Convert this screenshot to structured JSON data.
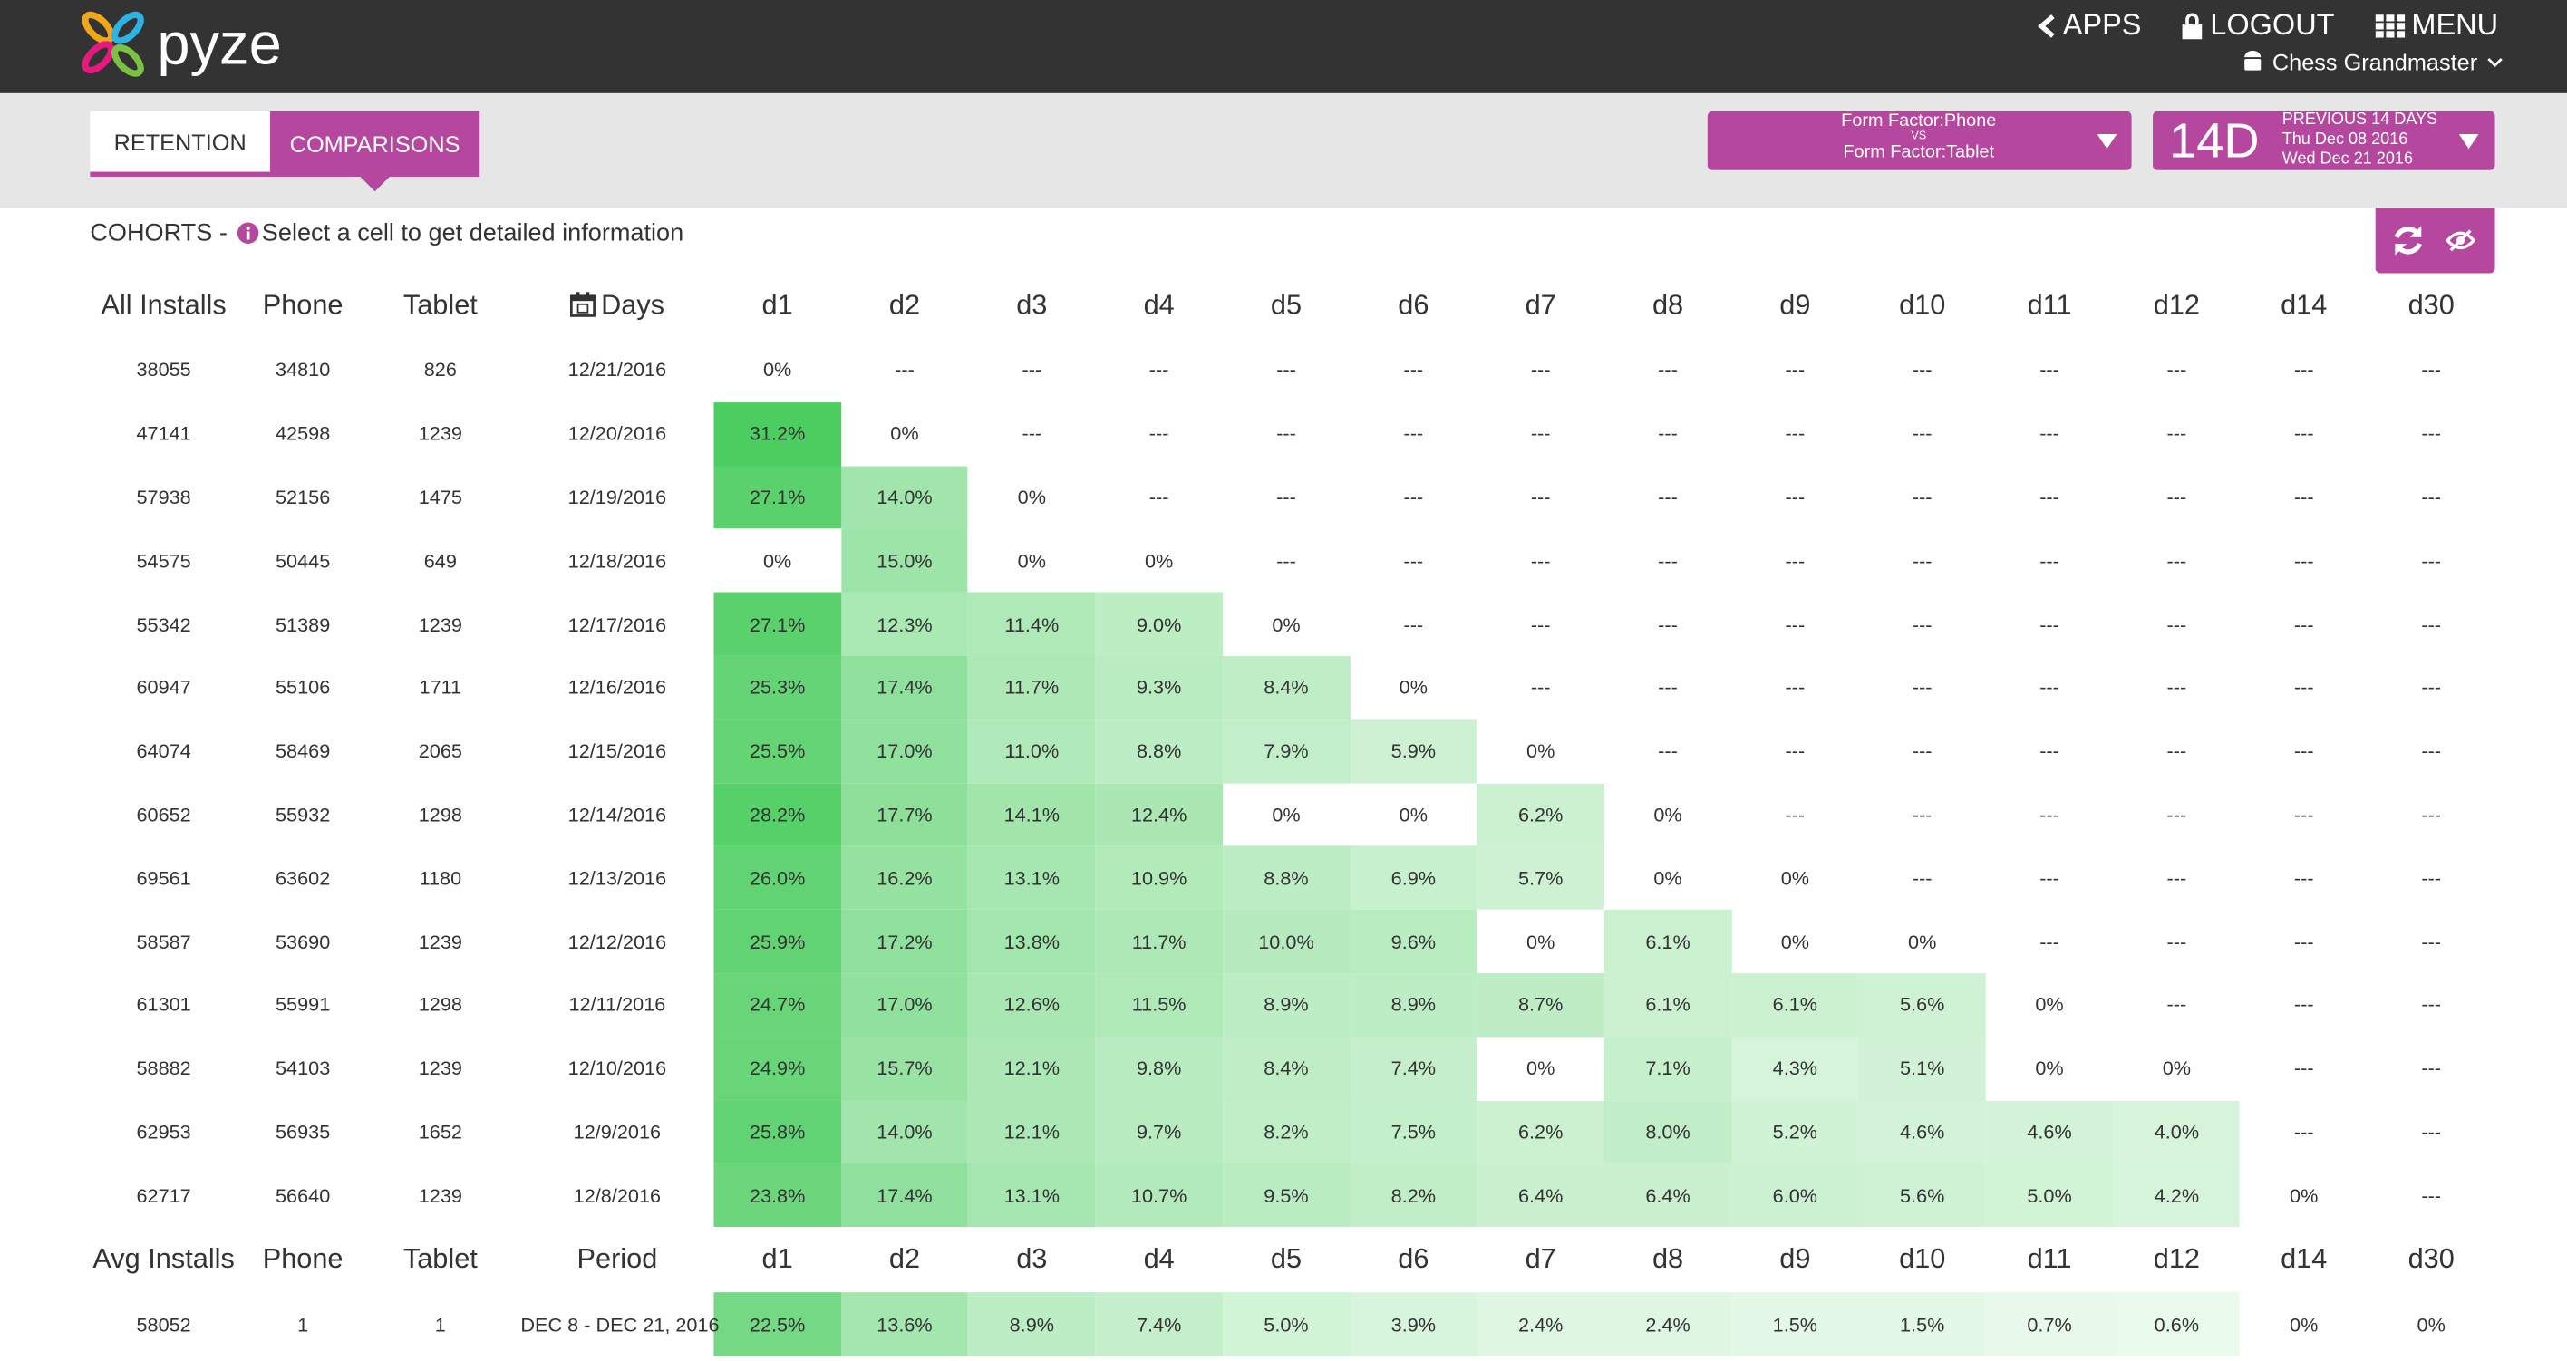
{
  "header": {
    "logo": "pyze",
    "nav": [
      "APPS",
      "LOGOUT",
      "MENU"
    ],
    "app_name": "Chess Grandmaster"
  },
  "tabs": [
    "RETENTION",
    "COMPARISONS"
  ],
  "filter": {
    "first": "Form Factor:Phone",
    "vs": "VS",
    "second": "Form Factor:Tablet"
  },
  "date_range": {
    "short": "14D",
    "label": "PREVIOUS 14 DAYS",
    "start": "Thu Dec 08 2016",
    "end": "Wed Dec 21 2016"
  },
  "cohorts": {
    "title": "COHORTS -",
    "hint": "Select a cell to get detailed information"
  },
  "table": {
    "columns": [
      "All Installs",
      "Phone",
      "Tablet",
      "Days",
      "d1",
      "d2",
      "d3",
      "d4",
      "d5",
      "d6",
      "d7",
      "d8",
      "d9",
      "d10",
      "d11",
      "d12",
      "d14",
      "d30"
    ],
    "rows": [
      [
        "38055",
        "34810",
        "826",
        "12/21/2016",
        "0%",
        "---",
        "---",
        "---",
        "---",
        "---",
        "---",
        "---",
        "---",
        "---",
        "---",
        "---",
        "---",
        "---"
      ],
      [
        "47141",
        "42598",
        "1239",
        "12/20/2016",
        "31.2%",
        "0%",
        "---",
        "---",
        "---",
        "---",
        "---",
        "---",
        "---",
        "---",
        "---",
        "---",
        "---",
        "---"
      ],
      [
        "57938",
        "52156",
        "1475",
        "12/19/2016",
        "27.1%",
        "14.0%",
        "0%",
        "---",
        "---",
        "---",
        "---",
        "---",
        "---",
        "---",
        "---",
        "---",
        "---",
        "---"
      ],
      [
        "54575",
        "50445",
        "649",
        "12/18/2016",
        "0%",
        "15.0%",
        "0%",
        "0%",
        "---",
        "---",
        "---",
        "---",
        "---",
        "---",
        "---",
        "---",
        "---",
        "---"
      ],
      [
        "55342",
        "51389",
        "1239",
        "12/17/2016",
        "27.1%",
        "12.3%",
        "11.4%",
        "9.0%",
        "0%",
        "---",
        "---",
        "---",
        "---",
        "---",
        "---",
        "---",
        "---",
        "---"
      ],
      [
        "60947",
        "55106",
        "1711",
        "12/16/2016",
        "25.3%",
        "17.4%",
        "11.7%",
        "9.3%",
        "8.4%",
        "0%",
        "---",
        "---",
        "---",
        "---",
        "---",
        "---",
        "---",
        "---"
      ],
      [
        "64074",
        "58469",
        "2065",
        "12/15/2016",
        "25.5%",
        "17.0%",
        "11.0%",
        "8.8%",
        "7.9%",
        "5.9%",
        "0%",
        "---",
        "---",
        "---",
        "---",
        "---",
        "---",
        "---"
      ],
      [
        "60652",
        "55932",
        "1298",
        "12/14/2016",
        "28.2%",
        "17.7%",
        "14.1%",
        "12.4%",
        "0%",
        "0%",
        "6.2%",
        "0%",
        "---",
        "---",
        "---",
        "---",
        "---",
        "---"
      ],
      [
        "69561",
        "63602",
        "1180",
        "12/13/2016",
        "26.0%",
        "16.2%",
        "13.1%",
        "10.9%",
        "8.8%",
        "6.9%",
        "5.7%",
        "0%",
        "0%",
        "---",
        "---",
        "---",
        "---",
        "---"
      ],
      [
        "58587",
        "53690",
        "1239",
        "12/12/2016",
        "25.9%",
        "17.2%",
        "13.8%",
        "11.7%",
        "10.0%",
        "9.6%",
        "0%",
        "6.1%",
        "0%",
        "0%",
        "---",
        "---",
        "---",
        "---"
      ],
      [
        "61301",
        "55991",
        "1298",
        "12/11/2016",
        "24.7%",
        "17.0%",
        "12.6%",
        "11.5%",
        "8.9%",
        "8.9%",
        "8.7%",
        "6.1%",
        "6.1%",
        "5.6%",
        "0%",
        "---",
        "---",
        "---"
      ],
      [
        "58882",
        "54103",
        "1239",
        "12/10/2016",
        "24.9%",
        "15.7%",
        "12.1%",
        "9.8%",
        "8.4%",
        "7.4%",
        "0%",
        "7.1%",
        "4.3%",
        "5.1%",
        "0%",
        "0%",
        "---",
        "---"
      ],
      [
        "62953",
        "56935",
        "1652",
        "12/9/2016",
        "25.8%",
        "14.0%",
        "12.1%",
        "9.7%",
        "8.2%",
        "7.5%",
        "6.2%",
        "8.0%",
        "5.2%",
        "4.6%",
        "4.6%",
        "4.0%",
        "---",
        "---"
      ],
      [
        "62717",
        "56640",
        "1239",
        "12/8/2016",
        "23.8%",
        "17.4%",
        "13.1%",
        "10.7%",
        "9.5%",
        "8.2%",
        "6.4%",
        "6.4%",
        "6.0%",
        "5.6%",
        "5.0%",
        "4.2%",
        "0%",
        "---"
      ]
    ],
    "footer_columns": [
      "Avg Installs",
      "Phone",
      "Tablet",
      "Period",
      "d1",
      "d2",
      "d3",
      "d4",
      "d5",
      "d6",
      "d7",
      "d8",
      "d9",
      "d10",
      "d11",
      "d12",
      "d14",
      "d30"
    ],
    "average": [
      "58052",
      "1",
      "1",
      "DEC 8 - DEC 21, 2016",
      "22.5%",
      "13.6%",
      "8.9%",
      "7.4%",
      "5.0%",
      "3.9%",
      "2.4%",
      "2.4%",
      "1.5%",
      "1.5%",
      "0.7%",
      "0.6%",
      "0%",
      "0%"
    ]
  }
}
